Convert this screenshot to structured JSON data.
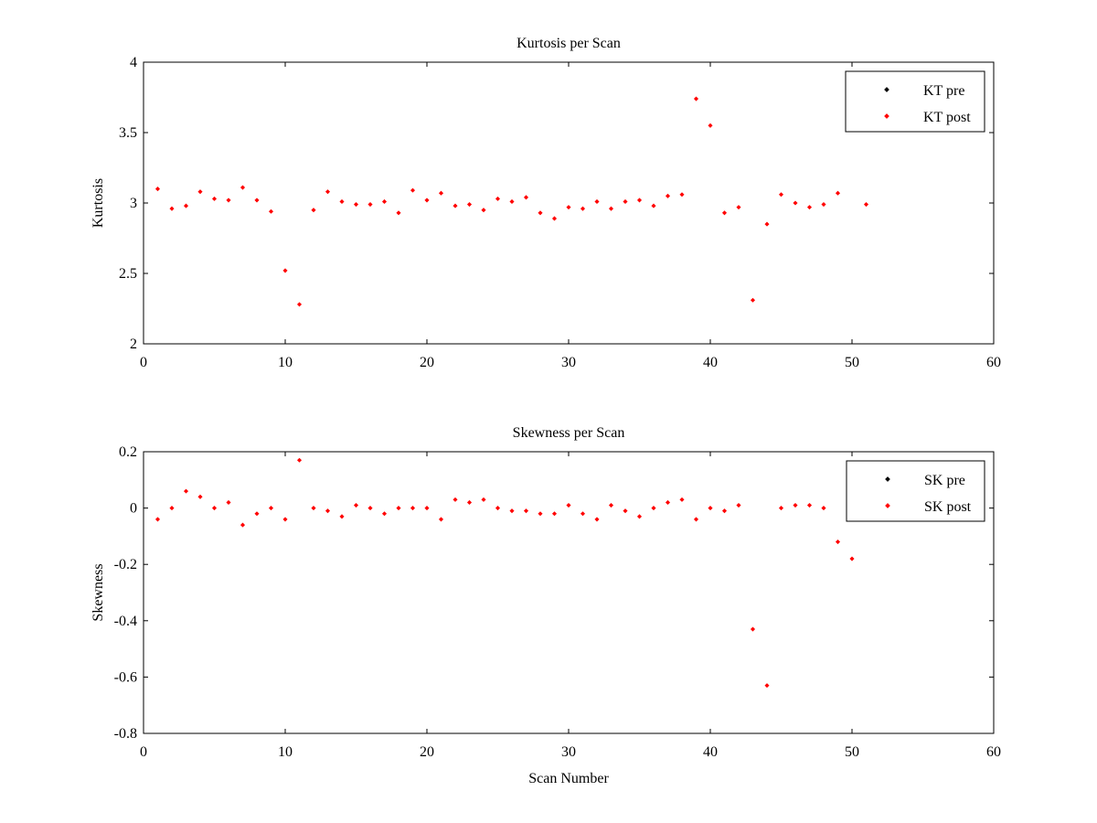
{
  "chart_data": [
    {
      "type": "scatter",
      "title": "Kurtosis per Scan",
      "xlabel": "",
      "ylabel": "Kurtosis",
      "xlim": [
        0,
        60
      ],
      "ylim": [
        2,
        4
      ],
      "xticks": [
        0,
        10,
        20,
        30,
        40,
        50,
        60
      ],
      "yticks": [
        2,
        2.5,
        3,
        3.5,
        4
      ],
      "xtick_labels": [
        "0",
        "10",
        "20",
        "30",
        "40",
        "50",
        "60"
      ],
      "ytick_labels": [
        "2",
        "2.5",
        "3",
        "3.5",
        "4"
      ],
      "grid": false,
      "legend_position": "top-right",
      "series": [
        {
          "name": "KT pre",
          "color": "#000000",
          "x": [],
          "y": []
        },
        {
          "name": "KT post",
          "color": "#ff0000",
          "x": [
            1,
            2,
            3,
            4,
            5,
            6,
            7,
            8,
            9,
            10,
            11,
            12,
            13,
            14,
            15,
            16,
            17,
            18,
            19,
            20,
            21,
            22,
            23,
            24,
            25,
            26,
            27,
            28,
            29,
            30,
            31,
            32,
            33,
            34,
            35,
            36,
            37,
            38,
            39,
            40,
            41,
            42,
            43,
            44,
            45,
            46,
            47,
            48,
            49,
            51
          ],
          "y": [
            3.1,
            2.96,
            2.98,
            3.08,
            3.03,
            3.02,
            3.11,
            3.02,
            2.94,
            2.52,
            2.28,
            2.95,
            3.08,
            3.01,
            2.99,
            2.99,
            3.01,
            2.93,
            3.09,
            3.02,
            3.07,
            2.98,
            2.99,
            2.95,
            3.03,
            3.01,
            3.04,
            2.93,
            2.89,
            2.97,
            2.96,
            3.01,
            2.96,
            3.01,
            3.02,
            2.98,
            3.05,
            3.06,
            3.74,
            3.55,
            2.93,
            2.97,
            2.31,
            2.85,
            3.06,
            3.0,
            2.97,
            2.99,
            3.07,
            2.99
          ]
        }
      ]
    },
    {
      "type": "scatter",
      "title": "Skewness per Scan",
      "xlabel": "Scan Number",
      "ylabel": "Skewness",
      "xlim": [
        0,
        60
      ],
      "ylim": [
        -0.8,
        0.2
      ],
      "xticks": [
        0,
        10,
        20,
        30,
        40,
        50,
        60
      ],
      "yticks": [
        -0.8,
        -0.6,
        -0.4,
        -0.2,
        0,
        0.2
      ],
      "xtick_labels": [
        "0",
        "10",
        "20",
        "30",
        "40",
        "50",
        "60"
      ],
      "ytick_labels": [
        "-0.8",
        "-0.6",
        "-0.4",
        "-0.2",
        "0",
        "0.2"
      ],
      "grid": false,
      "legend_position": "top-right",
      "series": [
        {
          "name": "SK pre",
          "color": "#000000",
          "x": [],
          "y": []
        },
        {
          "name": "SK post",
          "color": "#ff0000",
          "x": [
            1,
            2,
            3,
            4,
            5,
            6,
            7,
            8,
            9,
            10,
            11,
            12,
            13,
            14,
            15,
            16,
            17,
            18,
            19,
            20,
            21,
            22,
            23,
            24,
            25,
            26,
            27,
            28,
            29,
            30,
            31,
            32,
            33,
            34,
            35,
            36,
            37,
            38,
            39,
            40,
            41,
            42,
            43,
            44,
            45,
            46,
            47,
            48,
            49,
            50
          ],
          "y": [
            -0.04,
            0.0,
            0.06,
            0.04,
            0.0,
            0.02,
            -0.06,
            -0.02,
            0.0,
            -0.04,
            0.17,
            0.0,
            -0.01,
            -0.03,
            0.01,
            0.0,
            -0.02,
            0.0,
            0.0,
            0.0,
            -0.04,
            0.03,
            0.02,
            0.03,
            0.0,
            -0.01,
            -0.01,
            -0.02,
            -0.02,
            0.01,
            -0.02,
            -0.04,
            0.01,
            -0.01,
            -0.03,
            0.0,
            0.02,
            0.03,
            -0.04,
            0.0,
            -0.01,
            0.01,
            -0.43,
            -0.63,
            0.0,
            0.01,
            0.01,
            0.0,
            -0.12,
            -0.18
          ]
        }
      ]
    }
  ]
}
